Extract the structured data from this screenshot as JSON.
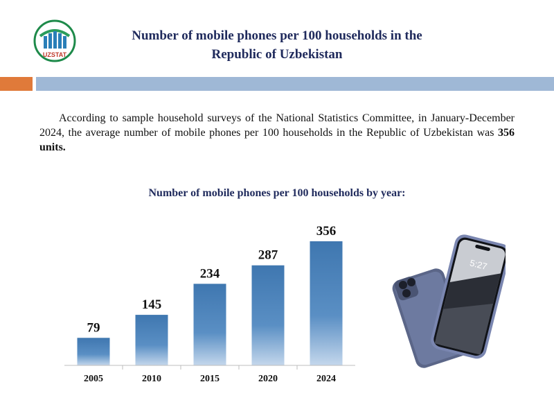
{
  "header": {
    "logo_text": "UZSTAT",
    "title_line1": "Number of mobile phones per 100 households in the",
    "title_line2": "Republic of Uzbekistan"
  },
  "summary": {
    "text": "According to sample household surveys of the National Statistics Committee, in January-December 2024, the average number of mobile phones per 100 households in the Republic of Uzbekistan was ",
    "highlight": "356 units."
  },
  "chart_data": {
    "type": "bar",
    "title": "Number of mobile phones per 100 households by year:",
    "categories": [
      "2005",
      "2010",
      "2015",
      "2020",
      "2024"
    ],
    "values": [
      79,
      145,
      234,
      287,
      356
    ],
    "ylim": [
      0,
      356
    ],
    "grid": false,
    "bar_color": "#3f77b0"
  },
  "illustration": {
    "phone_clock": "5:27"
  }
}
